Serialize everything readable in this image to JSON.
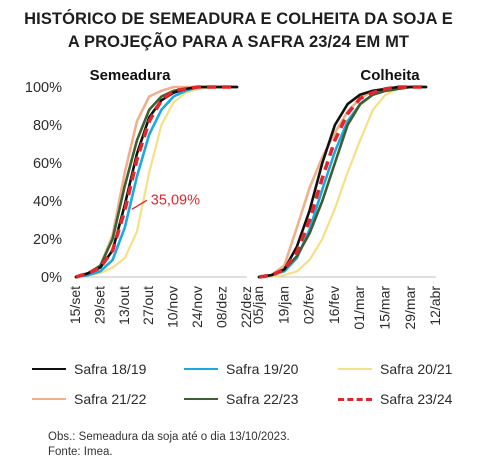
{
  "title": {
    "line1": "HISTÓRICO DE SEMEADURA E COLHEITA DA SOJA E",
    "line2": "A PROJEÇÃO PARA A SAFRA 23/24 EM MT"
  },
  "colors": {
    "Safra 18/19": "#111111",
    "Safra 19/20": "#1aa9e0",
    "Safra 20/21": "#f7df86",
    "Safra 21/22": "#efb08e",
    "Safra 22/23": "#3e5e32",
    "Safra 23/24": "#e3262b"
  },
  "chart_data": [
    {
      "type": "line",
      "title": "Semeadura",
      "x": [
        "15/set",
        "29/set",
        "13/out",
        "27/out",
        "10/nov",
        "24/nov",
        "08/dez",
        "22/dez"
      ],
      "ylim": [
        0,
        100
      ],
      "yticks": [
        "0%",
        "20%",
        "40%",
        "60%",
        "80%",
        "100%"
      ],
      "grid": false,
      "annotation": "35,09%",
      "series": [
        {
          "name": "Safra 18/19",
          "points": [
            [
              0,
              0
            ],
            [
              0.5,
              2
            ],
            [
              1,
              5
            ],
            [
              1.5,
              14
            ],
            [
              2,
              38
            ],
            [
              2.5,
              65
            ],
            [
              3,
              84
            ],
            [
              3.5,
              93
            ],
            [
              4,
              97
            ],
            [
              4.5,
              99
            ],
            [
              5,
              100
            ],
            [
              6,
              100
            ],
            [
              6.6,
              100
            ]
          ]
        },
        {
          "name": "Safra 19/20",
          "points": [
            [
              0,
              0
            ],
            [
              0.5,
              1
            ],
            [
              1,
              3
            ],
            [
              1.5,
              9
            ],
            [
              2,
              26
            ],
            [
              2.5,
              53
            ],
            [
              3,
              75
            ],
            [
              3.5,
              88
            ],
            [
              4,
              95
            ],
            [
              4.5,
              98
            ],
            [
              5,
              100
            ],
            [
              6,
              100
            ],
            [
              6.6,
              100
            ]
          ]
        },
        {
          "name": "Safra 20/21",
          "points": [
            [
              0,
              0
            ],
            [
              0.5,
              1
            ],
            [
              1,
              2
            ],
            [
              1.5,
              5
            ],
            [
              2,
              10
            ],
            [
              2.5,
              24
            ],
            [
              3,
              55
            ],
            [
              3.5,
              80
            ],
            [
              4,
              92
            ],
            [
              4.5,
              97
            ],
            [
              5,
              99
            ],
            [
              6,
              100
            ],
            [
              6.6,
              100
            ]
          ]
        },
        {
          "name": "Safra 21/22",
          "points": [
            [
              0,
              0
            ],
            [
              0.5,
              2
            ],
            [
              1,
              6
            ],
            [
              1.5,
              22
            ],
            [
              2,
              55
            ],
            [
              2.5,
              82
            ],
            [
              3,
              95
            ],
            [
              3.5,
              98
            ],
            [
              4,
              100
            ],
            [
              5,
              100
            ],
            [
              6,
              100
            ],
            [
              6.6,
              100
            ]
          ]
        },
        {
          "name": "Safra 22/23",
          "points": [
            [
              0,
              0
            ],
            [
              0.5,
              2
            ],
            [
              1,
              6
            ],
            [
              1.5,
              20
            ],
            [
              2,
              48
            ],
            [
              2.5,
              72
            ],
            [
              3,
              88
            ],
            [
              3.5,
              95
            ],
            [
              4,
              98
            ],
            [
              4.5,
              99
            ],
            [
              5,
              100
            ],
            [
              6,
              100
            ],
            [
              6.6,
              100
            ]
          ]
        },
        {
          "name": "Safra 23/24",
          "points": [
            [
              0,
              0
            ],
            [
              0.5,
              2
            ],
            [
              1,
              5
            ],
            [
              1.5,
              14
            ],
            [
              2,
              35.09
            ],
            [
              2.5,
              62
            ],
            [
              3,
              82
            ],
            [
              3.5,
              93
            ],
            [
              4,
              98
            ],
            [
              4.5,
              99
            ],
            [
              5,
              100
            ],
            [
              6,
              100
            ],
            [
              6.6,
              100
            ]
          ]
        }
      ]
    },
    {
      "type": "line",
      "title": "Colheita",
      "x": [
        "05/jan",
        "19/jan",
        "02/fev",
        "16/fev",
        "01/mar",
        "15/mar",
        "29/mar",
        "12/abr"
      ],
      "ylim": [
        0,
        100
      ],
      "grid": false,
      "series": [
        {
          "name": "Safra 18/19",
          "points": [
            [
              0,
              0
            ],
            [
              0.5,
              1
            ],
            [
              1,
              4
            ],
            [
              1.5,
              16
            ],
            [
              2,
              35
            ],
            [
              2.5,
              60
            ],
            [
              3,
              80
            ],
            [
              3.5,
              91
            ],
            [
              4,
              96
            ],
            [
              4.5,
              98
            ],
            [
              5,
              99
            ],
            [
              5.5,
              100
            ],
            [
              6,
              100
            ],
            [
              6.6,
              100
            ]
          ]
        },
        {
          "name": "Safra 19/20",
          "points": [
            [
              0,
              0
            ],
            [
              0.5,
              1
            ],
            [
              1,
              3
            ],
            [
              1.5,
              10
            ],
            [
              2,
              25
            ],
            [
              2.5,
              46
            ],
            [
              3,
              66
            ],
            [
              3.5,
              82
            ],
            [
              4,
              91
            ],
            [
              4.5,
              96
            ],
            [
              5,
              98
            ],
            [
              5.5,
              99
            ],
            [
              6,
              100
            ],
            [
              6.6,
              100
            ]
          ]
        },
        {
          "name": "Safra 20/21",
          "points": [
            [
              0,
              0
            ],
            [
              0.5,
              0
            ],
            [
              1,
              1
            ],
            [
              1.5,
              3
            ],
            [
              2,
              9
            ],
            [
              2.5,
              20
            ],
            [
              3,
              36
            ],
            [
              3.5,
              55
            ],
            [
              4,
              72
            ],
            [
              4.5,
              88
            ],
            [
              5,
              96
            ],
            [
              5.5,
              99
            ],
            [
              6,
              100
            ],
            [
              6.6,
              100
            ]
          ]
        },
        {
          "name": "Safra 21/22",
          "points": [
            [
              0,
              0
            ],
            [
              0.5,
              1
            ],
            [
              1,
              6
            ],
            [
              1.5,
              26
            ],
            [
              2,
              47
            ],
            [
              2.5,
              63
            ],
            [
              3,
              76
            ],
            [
              3.5,
              87
            ],
            [
              4,
              94
            ],
            [
              4.5,
              98
            ],
            [
              5,
              99
            ],
            [
              5.5,
              100
            ],
            [
              6,
              100
            ],
            [
              6.6,
              100
            ]
          ]
        },
        {
          "name": "Safra 22/23",
          "points": [
            [
              0,
              0
            ],
            [
              0.5,
              1
            ],
            [
              1,
              4
            ],
            [
              1.5,
              11
            ],
            [
              2,
              23
            ],
            [
              2.5,
              40
            ],
            [
              3,
              60
            ],
            [
              3.5,
              80
            ],
            [
              4,
              91
            ],
            [
              4.5,
              96
            ],
            [
              5,
              98
            ],
            [
              5.5,
              99
            ],
            [
              6,
              100
            ],
            [
              6.6,
              100
            ]
          ]
        },
        {
          "name": "Safra 23/24",
          "points": [
            [
              0,
              0
            ],
            [
              0.5,
              1
            ],
            [
              1,
              4
            ],
            [
              1.5,
              13
            ],
            [
              2,
              30
            ],
            [
              2.5,
              52
            ],
            [
              3,
              72
            ],
            [
              3.5,
              86
            ],
            [
              4,
              94
            ],
            [
              4.5,
              97
            ],
            [
              5,
              99
            ],
            [
              5.5,
              100
            ],
            [
              6,
              100
            ],
            [
              6.6,
              100
            ]
          ]
        }
      ]
    }
  ],
  "legend": [
    "Safra 18/19",
    "Safra 19/20",
    "Safra 20/21",
    "Safra 21/22",
    "Safra 22/23",
    "Safra 23/24"
  ],
  "note": {
    "line1": "Obs.: Semeadura da soja até o dia 13/10/2023.",
    "line2": "Fonte: Imea."
  }
}
